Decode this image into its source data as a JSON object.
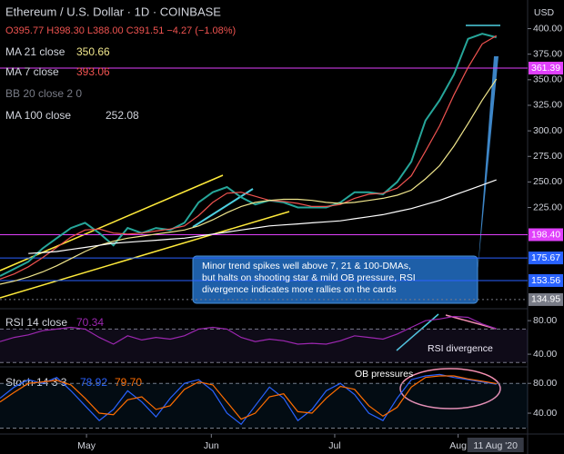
{
  "chart_data": [
    {
      "type": "line",
      "title": "Ethereum / U.S. Dollar · 1D · COINBASE",
      "ohlc": "O395.77 H398.30 L388.00 C391.51 −4.27 (−1.08%)",
      "x": [
        0,
        1,
        2,
        3,
        4,
        5,
        6,
        7,
        8,
        9,
        10,
        11,
        12,
        13,
        14,
        15,
        16,
        17,
        18,
        19,
        20,
        21,
        22,
        23,
        24,
        25,
        26,
        27,
        28,
        29,
        30,
        31,
        32,
        33,
        34,
        35
      ],
      "xlim": [
        0,
        37.2
      ],
      "xticks": [
        {
          "value": 6.1,
          "label": "May"
        },
        {
          "value": 14.9,
          "label": "Jun"
        },
        {
          "value": 23.6,
          "label": "Jul"
        },
        {
          "value": 32.3,
          "label": "Aug"
        }
      ],
      "date_label": "11 Aug '20",
      "ylim": [
        126,
        428
      ],
      "yticks": [
        {
          "value": 400,
          "label": "400.00"
        },
        {
          "value": 375,
          "label": "375.00"
        },
        {
          "value": 350,
          "label": "350.00"
        },
        {
          "value": 325,
          "label": "325.00"
        },
        {
          "value": 300,
          "label": "300.00"
        },
        {
          "value": 275,
          "label": "275.00"
        },
        {
          "value": 250,
          "label": "250.00"
        },
        {
          "value": 225,
          "label": "225.00"
        }
      ],
      "currency": "USD",
      "series": [
        {
          "color": "#26a69a",
          "values": [
            158,
            165,
            172,
            185,
            195,
            205,
            210,
            200,
            188,
            205,
            200,
            205,
            203,
            210,
            230,
            240,
            245,
            235,
            228,
            232,
            230,
            225,
            225,
            225,
            230,
            240,
            240,
            238,
            250,
            270,
            310,
            330,
            355,
            390,
            395,
            391.51
          ]
        },
        {
          "name": "MA 7 close",
          "last_label": "393.06",
          "color": "#ef5350",
          "values": [
            155,
            160,
            167,
            176,
            186,
            196,
            203,
            204,
            200,
            199,
            200,
            202,
            204,
            207,
            217,
            230,
            239,
            240,
            236,
            232,
            231,
            229,
            226,
            226,
            228,
            234,
            238,
            239,
            244,
            256,
            280,
            305,
            335,
            362,
            385,
            393.06
          ]
        },
        {
          "name": "MA 21 close",
          "last_label": "350.66",
          "color": "#f0e68c",
          "values": [
            150,
            153,
            157,
            162,
            168,
            175,
            182,
            188,
            192,
            195,
            197,
            199,
            201,
            203,
            207,
            213,
            220,
            226,
            230,
            232,
            233,
            233,
            232,
            230,
            229,
            230,
            232,
            234,
            237,
            242,
            253,
            266,
            285,
            307,
            330,
            350.66
          ]
        },
        {
          "name": "MA 100 close",
          "last_label": "252.08",
          "color": "#ffffff",
          "values": [
            null,
            null,
            180,
            181,
            182,
            184,
            186,
            188,
            190,
            191,
            192,
            193,
            194,
            195,
            197,
            199,
            201,
            203,
            205,
            207,
            208,
            209,
            210,
            211,
            212,
            214,
            216,
            218,
            221,
            224,
            228,
            232,
            237,
            242,
            247,
            252.08
          ]
        }
      ],
      "series_extra": "BB 20 close 2 0",
      "levels": [
        {
          "value": 361.39,
          "color": "#e040fb"
        },
        {
          "value": 198.4,
          "color": "#e040fb"
        },
        {
          "value": 175.67,
          "color": "#2962ff"
        },
        {
          "value": 153.56,
          "color": "#2962ff"
        },
        {
          "value": 134.95,
          "color": "#787b86"
        }
      ],
      "level_labels": [
        "361.39",
        "198.40",
        "175.67",
        "153.56",
        "134.95"
      ],
      "annotation": [
        "Minor trend spikes well above 7, 21 & 100-DMAs,",
        "but halts on shooting star & mild OB pressure, RSI",
        "divergence indicates more rallies on the cards"
      ]
    },
    {
      "type": "line",
      "title": "RSI 14 close",
      "last_label": "70.34",
      "x": [
        0,
        1,
        2,
        3,
        4,
        5,
        6,
        7,
        8,
        9,
        10,
        11,
        12,
        13,
        14,
        15,
        16,
        17,
        18,
        19,
        20,
        21,
        22,
        23,
        24,
        25,
        26,
        27,
        28,
        29,
        30,
        31,
        32,
        33,
        34,
        35
      ],
      "xlim": [
        0,
        37.2
      ],
      "ylim": [
        26,
        91
      ],
      "yticks": [
        {
          "value": 80,
          "label": "80.00"
        },
        {
          "value": 40,
          "label": "40.00"
        }
      ],
      "bands": [
        70,
        30
      ],
      "series": [
        {
          "color": "#9c27b0",
          "values": [
            55,
            60,
            63,
            68,
            70,
            72,
            70,
            60,
            52,
            62,
            57,
            60,
            58,
            62,
            70,
            72,
            70,
            60,
            55,
            58,
            56,
            52,
            53,
            52,
            56,
            62,
            60,
            58,
            64,
            72,
            80,
            82,
            85,
            84,
            76,
            70.34
          ]
        }
      ],
      "annotation": "RSI divergence"
    },
    {
      "type": "line",
      "title": "Stoch 14 3 3",
      "last_labels": [
        "78.92",
        "79.70"
      ],
      "x": [
        0,
        1,
        2,
        3,
        4,
        5,
        6,
        7,
        8,
        9,
        10,
        11,
        12,
        13,
        14,
        15,
        16,
        17,
        18,
        19,
        20,
        21,
        22,
        23,
        24,
        25,
        26,
        27,
        28,
        29,
        30,
        31,
        32,
        33,
        34,
        35
      ],
      "xlim": [
        0,
        37.2
      ],
      "ylim": [
        12,
        101
      ],
      "yticks": [
        {
          "value": 80,
          "label": "80.00"
        },
        {
          "value": 40,
          "label": "40.00"
        }
      ],
      "bands": [
        80,
        20
      ],
      "series": [
        {
          "color": "#2962ff",
          "values": [
            60,
            75,
            85,
            80,
            88,
            70,
            50,
            30,
            45,
            70,
            55,
            35,
            60,
            80,
            85,
            70,
            40,
            25,
            50,
            75,
            60,
            30,
            45,
            70,
            80,
            65,
            40,
            30,
            60,
            85,
            90,
            92,
            88,
            85,
            82,
            78.92
          ]
        },
        {
          "color": "#ff6d00",
          "values": [
            55,
            68,
            80,
            82,
            84,
            78,
            60,
            40,
            38,
            58,
            62,
            45,
            50,
            72,
            82,
            78,
            55,
            32,
            40,
            62,
            66,
            42,
            40,
            60,
            76,
            72,
            50,
            36,
            48,
            75,
            88,
            90,
            90,
            86,
            83,
            79.7
          ]
        }
      ],
      "annotation": "OB pressures"
    }
  ]
}
